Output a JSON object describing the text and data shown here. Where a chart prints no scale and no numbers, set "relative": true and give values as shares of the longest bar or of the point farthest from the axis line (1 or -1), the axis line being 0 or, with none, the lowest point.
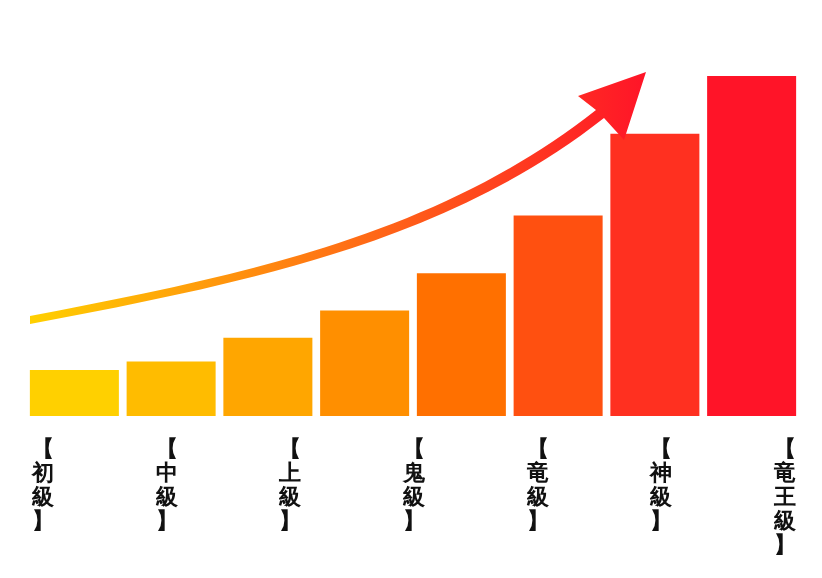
{
  "chart_data": {
    "type": "bar",
    "relative": true,
    "categories": [
      null,
      null,
      null,
      null,
      null,
      null,
      null,
      null
    ],
    "values": [
      0.135,
      0.16,
      0.23,
      0.31,
      0.42,
      0.59,
      0.83,
      1.0
    ],
    "colors": [
      "#ffd000",
      "#ffbc00",
      "#ffa600",
      "#ff8f00",
      "#ff7000",
      "#ff5010",
      "#ff3020",
      "#ff1428"
    ],
    "legend": false,
    "annotations": [
      "【初級】",
      "【中級】",
      "【上級】",
      "【鬼級】",
      "【竜級】",
      "【神級】",
      "【竜王級】"
    ]
  }
}
